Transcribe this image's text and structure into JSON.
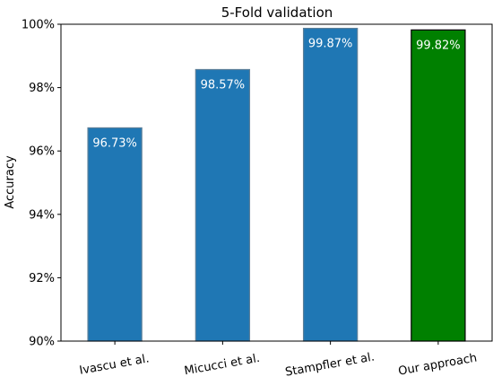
{
  "chart_data": {
    "type": "bar",
    "title": "5-Fold validation",
    "xlabel": "",
    "ylabel": "Accuracy",
    "categories": [
      "Ivascu et al.",
      "Micucci et al.",
      "Stampfler et al.",
      "Our approach"
    ],
    "values": [
      96.73,
      98.57,
      99.87,
      99.82
    ],
    "data_labels": [
      "96.73%",
      "98.57%",
      "99.87%",
      "99.82%"
    ],
    "bar_colors": [
      "#1f77b4",
      "#1f77b4",
      "#1f77b4",
      "#008000"
    ],
    "bar_edge_colors": [
      "#5b7f99",
      "#5b7f99",
      "#5b7f99",
      "#000000"
    ],
    "ylim": [
      90,
      100
    ],
    "yticks": [
      90,
      92,
      94,
      96,
      98,
      100
    ],
    "ytick_labels": [
      "90%",
      "92%",
      "94%",
      "96%",
      "98%",
      "100%"
    ],
    "grid": false,
    "legend": "none"
  }
}
